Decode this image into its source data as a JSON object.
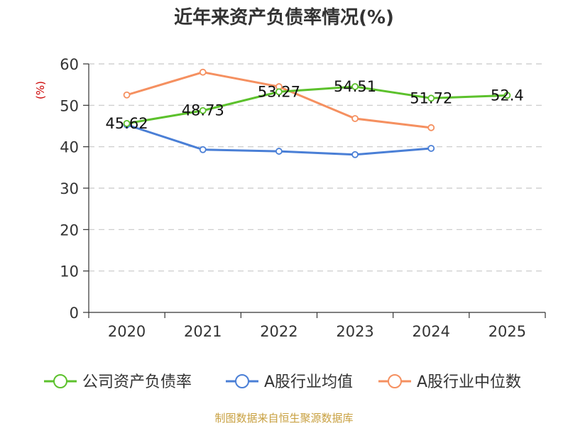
{
  "chart_data": {
    "type": "line",
    "title": "近年来资产负债率情况(%)",
    "ylabel": "(%)",
    "xlabel": "",
    "categories": [
      "2020",
      "2021",
      "2022",
      "2023",
      "2024",
      "2025"
    ],
    "y_ticks": [
      "0",
      "10",
      "20",
      "30",
      "40",
      "50",
      "60"
    ],
    "ylim": [
      0,
      60
    ],
    "grid": true,
    "legend_position": "bottom",
    "series": [
      {
        "name": "公司资产负债率",
        "color": "#5cc12c",
        "values": [
          45.62,
          48.73,
          53.27,
          54.51,
          51.72,
          52.4
        ],
        "labels": [
          "45.62",
          "48.73",
          "53.27",
          "54.51",
          "51.72",
          "52.4"
        ]
      },
      {
        "name": "A股行业均值",
        "color": "#4a7fd6",
        "values": [
          45.3,
          39.3,
          38.9,
          38.1,
          39.6,
          null
        ]
      },
      {
        "name": "A股行业中位数",
        "color": "#f59060",
        "values": [
          52.5,
          58.0,
          54.5,
          46.8,
          44.6,
          null
        ]
      }
    ],
    "source": "制图数据来自恒生聚源数据库"
  }
}
